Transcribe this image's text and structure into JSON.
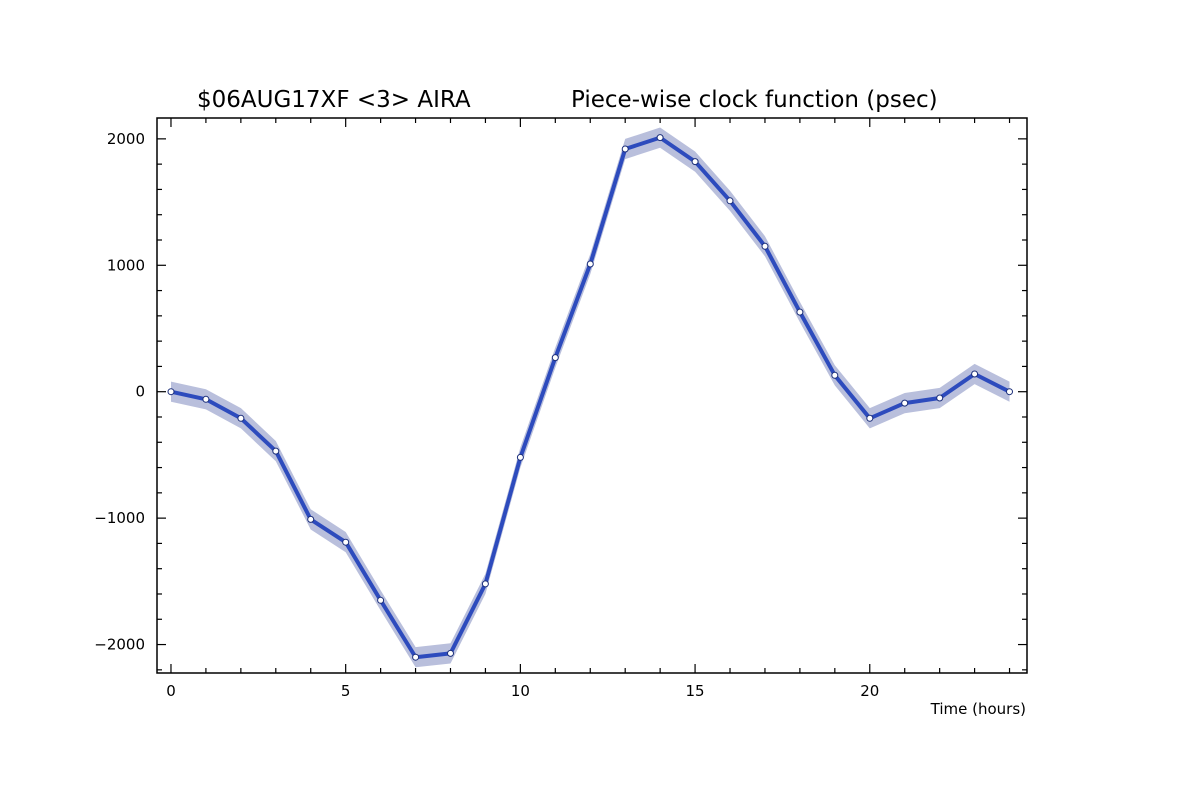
{
  "chart_data": {
    "type": "line",
    "title_left": "$06AUG17XF <3>  AIRA",
    "title_right": "Piece-wise clock function (psec)",
    "xlabel": "Time (hours)",
    "ylabel": "",
    "xlim": [
      -0.4,
      24.5
    ],
    "ylim": [
      -2225,
      2165
    ],
    "x_ticks": [
      0,
      5,
      10,
      15,
      20
    ],
    "y_ticks": [
      2000,
      1000,
      0,
      -1000,
      -2000
    ],
    "x_tick_labels": [
      "0",
      "5",
      "10",
      "15",
      "20"
    ],
    "y_tick_labels": [
      "2000",
      "1000",
      "0",
      "−1000",
      "−2000"
    ],
    "grid": false,
    "series": [
      {
        "x": [
          0,
          1,
          2,
          3,
          4,
          5,
          6,
          7,
          8,
          9,
          10,
          11,
          12,
          13,
          14,
          15,
          16,
          17,
          18,
          19,
          20,
          21,
          22,
          23,
          24
        ],
        "y": [
          0,
          -60,
          -210,
          -470,
          -1010,
          -1190,
          -1650,
          -2100,
          -2070,
          -1520,
          -520,
          270,
          1010,
          1920,
          2010,
          1820,
          1510,
          1150,
          630,
          130,
          -210,
          -90,
          -50,
          140,
          0
        ],
        "uncertainty": 80
      }
    ],
    "line_color": "#2d4bbd",
    "band_color": "#b9bfdc",
    "marker_fill": "#ffffff"
  }
}
